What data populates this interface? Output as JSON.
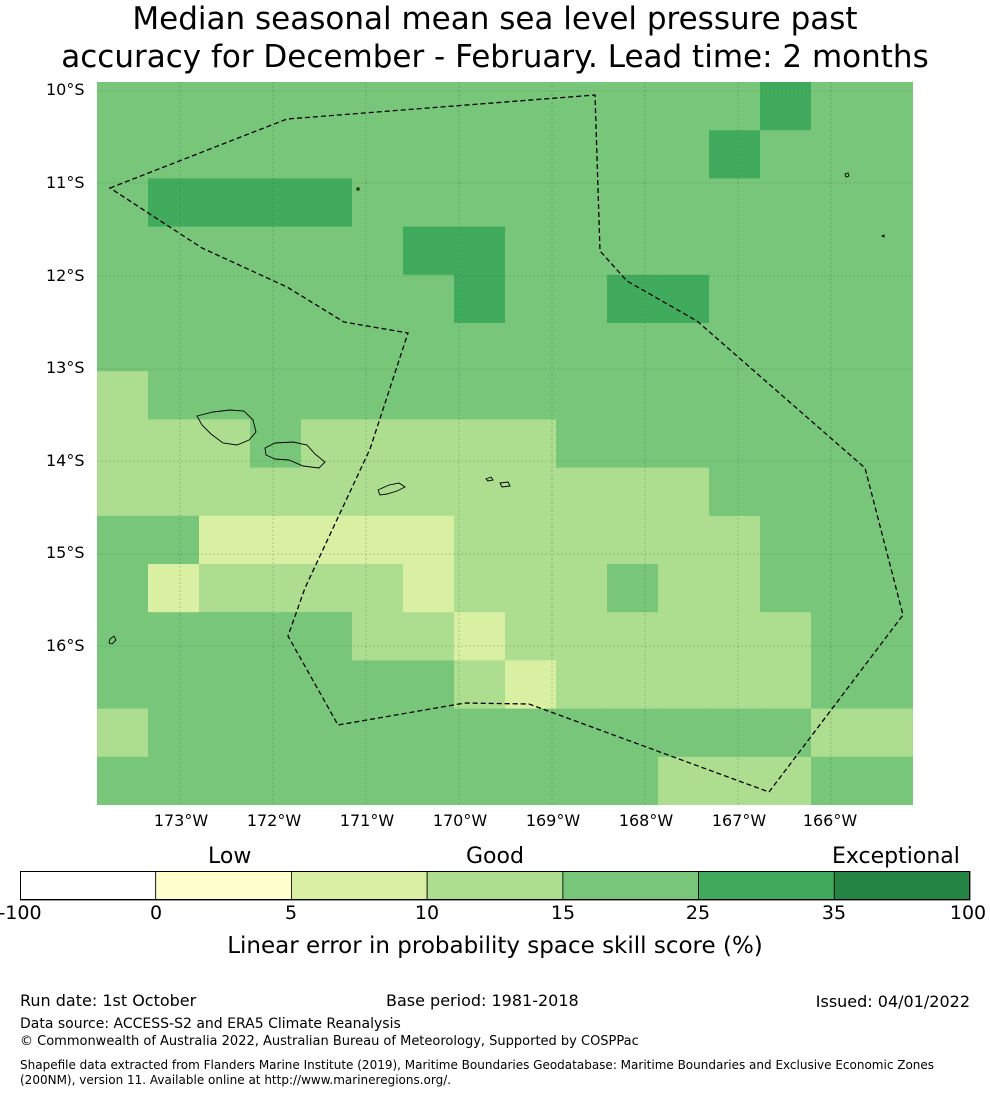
{
  "title": {
    "line1": "Median seasonal mean sea level pressure past",
    "line2": "accuracy for December - February. Lead time: 2 months"
  },
  "map": {
    "lat_labels": [
      "10°S",
      "11°S",
      "12°S",
      "13°S",
      "14°S",
      "15°S",
      "16°S"
    ],
    "lon_labels": [
      "173°W",
      "172°W",
      "171°W",
      "170°W",
      "169°W",
      "168°W",
      "167°W",
      "166°W"
    ],
    "color_classes": [
      "#ffffff",
      "#ffffcc",
      "#d9f0a3",
      "#addd8e",
      "#78c679",
      "#41ab5d",
      "#238443"
    ],
    "grid": [
      [
        4,
        4,
        4,
        4,
        4,
        4,
        4,
        4,
        4,
        4,
        4,
        4,
        4,
        5,
        4,
        4
      ],
      [
        4,
        4,
        4,
        4,
        4,
        4,
        4,
        4,
        4,
        4,
        4,
        4,
        5,
        4,
        4,
        4
      ],
      [
        4,
        5,
        5,
        5,
        5,
        4,
        4,
        4,
        4,
        4,
        4,
        4,
        4,
        4,
        4,
        4
      ],
      [
        4,
        4,
        4,
        4,
        4,
        4,
        5,
        5,
        4,
        4,
        4,
        4,
        4,
        4,
        4,
        4
      ],
      [
        4,
        4,
        4,
        4,
        4,
        4,
        4,
        5,
        4,
        4,
        5,
        5,
        4,
        4,
        4,
        4
      ],
      [
        4,
        4,
        4,
        4,
        4,
        4,
        4,
        4,
        4,
        4,
        4,
        4,
        4,
        4,
        4,
        4
      ],
      [
        3,
        4,
        4,
        4,
        4,
        4,
        4,
        4,
        4,
        4,
        4,
        4,
        4,
        4,
        4,
        4
      ],
      [
        3,
        3,
        3,
        4,
        3,
        3,
        3,
        3,
        3,
        4,
        4,
        4,
        4,
        4,
        4,
        4
      ],
      [
        3,
        3,
        3,
        3,
        3,
        3,
        3,
        3,
        3,
        3,
        3,
        3,
        4,
        4,
        4,
        4
      ],
      [
        4,
        4,
        2,
        2,
        2,
        2,
        2,
        3,
        3,
        3,
        3,
        3,
        3,
        4,
        4,
        4
      ],
      [
        4,
        2,
        3,
        3,
        3,
        3,
        2,
        3,
        3,
        3,
        4,
        3,
        3,
        4,
        4,
        4
      ],
      [
        4,
        4,
        4,
        4,
        4,
        3,
        3,
        2,
        3,
        3,
        3,
        3,
        3,
        3,
        4,
        4
      ],
      [
        4,
        4,
        4,
        4,
        4,
        4,
        4,
        3,
        2,
        3,
        3,
        3,
        3,
        3,
        4,
        4
      ],
      [
        3,
        4,
        4,
        4,
        4,
        4,
        4,
        4,
        4,
        4,
        4,
        4,
        4,
        4,
        3,
        3
      ],
      [
        4,
        4,
        4,
        4,
        4,
        4,
        4,
        4,
        4,
        4,
        4,
        3,
        3,
        3,
        4,
        4
      ]
    ]
  },
  "colorbar": {
    "categories": [
      "Low",
      "Good",
      "Exceptional"
    ],
    "ticks": [
      "-100",
      "0",
      "5",
      "10",
      "15",
      "25",
      "35",
      "100"
    ],
    "label": "Linear error in probability space skill score (%)"
  },
  "footer": {
    "run_date": "Run date: 1st October",
    "base_period": "Base period: 1981-2018",
    "issued": "Issued: 04/01/2022",
    "data_source": "Data source: ACCESS-S2 and ERA5 Climate Reanalysis",
    "copyright": "© Commonwealth of Australia 2022, Australian Bureau of Meteorology, Supported by COSPPac",
    "shapefile": "Shapefile data extracted from Flanders Marine Institute (2019), Maritime Boundaries Geodatabase: Maritime Boundaries and Exclusive Economic Zones (200NM), version 11. Available online at http://www.marineregions.org/."
  }
}
